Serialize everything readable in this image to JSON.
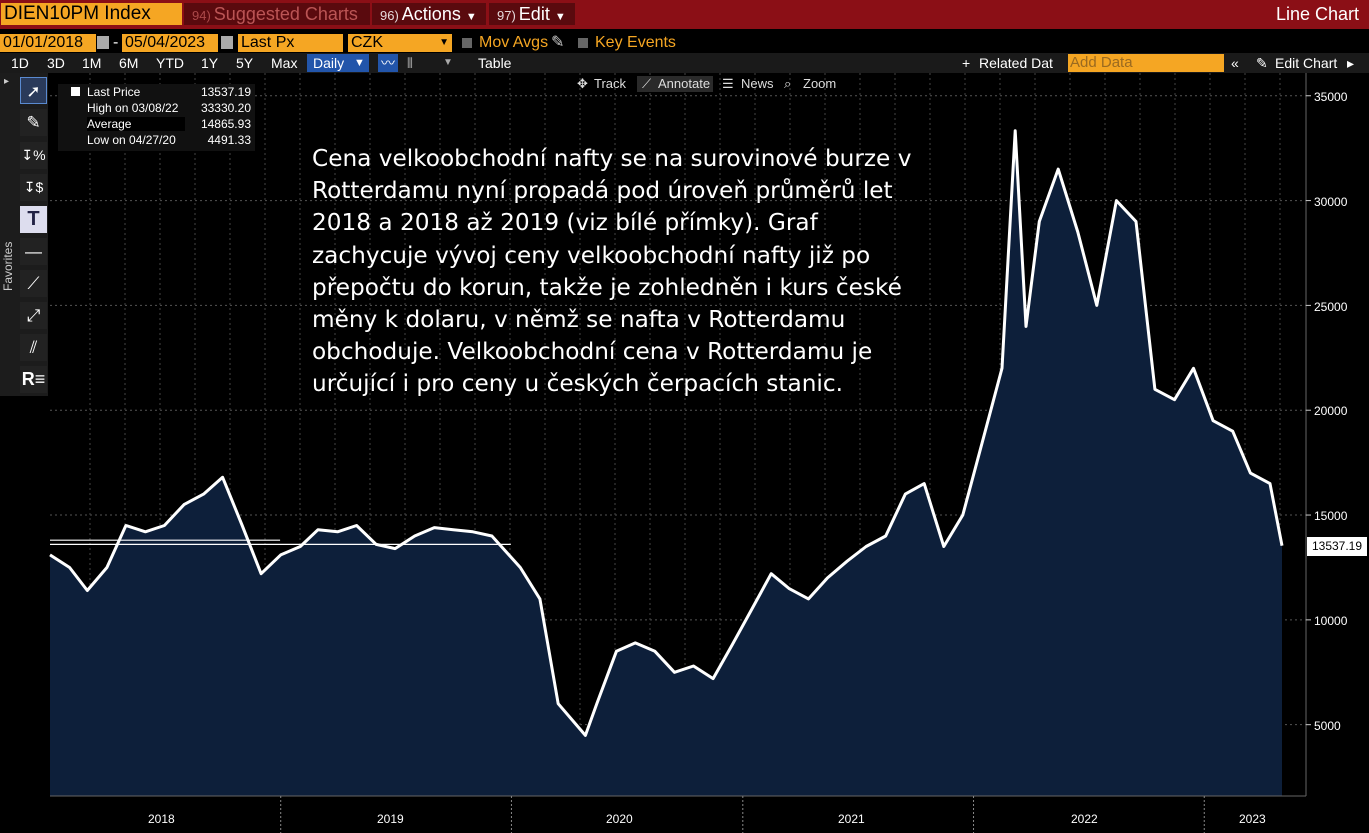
{
  "titlebar": {
    "ticker": "DIEN10PM Index",
    "suggested_num": "94)",
    "suggested": "Suggested Charts",
    "actions_num": "96)",
    "actions": "Actions",
    "edit_num": "97)",
    "edit": "Edit",
    "chart_type": "Line Chart"
  },
  "controls": {
    "start_date": "01/01/2018",
    "dash": "-",
    "end_date": "05/04/2023",
    "field": "Last Px",
    "currency": "CZK",
    "mov_avgs": "Mov Avgs",
    "key_events": "Key Events"
  },
  "range_bar": {
    "ranges": [
      "1D",
      "3D",
      "1M",
      "6M",
      "YTD",
      "1Y",
      "5Y",
      "Max"
    ],
    "period": "Daily",
    "table": "Table",
    "related": "Related Dat",
    "add_data": "Add Data",
    "edit_chart": "Edit Chart"
  },
  "annotate_bar": {
    "track": "Track",
    "annotate": "Annotate",
    "news": "News",
    "zoom": "Zoom"
  },
  "sidebar": {
    "favorites": "Favorites"
  },
  "legend": {
    "rows": [
      {
        "label": "Last Price",
        "value": "13537.19"
      },
      {
        "label": "High on 03/08/22",
        "value": "33330.20"
      },
      {
        "label": "Average",
        "value": "14865.93"
      },
      {
        "label": "Low on 04/27/20",
        "value": "4491.33"
      }
    ]
  },
  "annotation_text": "Cena velkoobchodní nafty se na surovinové burze v Rotterdamu nyní propadá pod úroveň průměrů let 2018 a 2018 až 2019 (viz bílé přímky). Graf zachycuje vývoj ceny velkoobchodní nafty již po přepočtu do korun, takže je zohledněn i kurs české měny k dolaru, v němž se nafta v Rotterdamu obchoduje. Velkoobchodní cena v Rotterdamu je určující i pro ceny u českých čerpacích stanic.",
  "last_value_label": "13537.19",
  "colors": {
    "titlebar": "#8b0f16",
    "accent": "#f5a623",
    "area": "#0d1f3a",
    "line": "#ffffff"
  },
  "chart_data": {
    "type": "area",
    "xlabel": "",
    "ylabel": "",
    "x_tick_labels": [
      "2018",
      "2019",
      "2020",
      "2021",
      "2022",
      "2023"
    ],
    "y_tick_labels": [
      "5000",
      "10000",
      "15000",
      "20000",
      "25000",
      "30000",
      "35000"
    ],
    "ylim": [
      2000,
      36000
    ],
    "xlim": [
      "2018-01-01",
      "2023-05-04"
    ],
    "grid": true,
    "reference_lines": [
      {
        "value": 13800,
        "from": "2018-01-01",
        "to": "2018-12-31"
      },
      {
        "value": 13600,
        "from": "2018-01-01",
        "to": "2019-12-31"
      }
    ],
    "series": [
      {
        "x": [
          "2018-01-01",
          "2018-02-01",
          "2018-03-01",
          "2018-04-01",
          "2018-05-01",
          "2018-06-01",
          "2018-07-01",
          "2018-08-01",
          "2018-09-01",
          "2018-10-01",
          "2018-11-01",
          "2018-12-01",
          "2019-01-01",
          "2019-02-01",
          "2019-03-01",
          "2019-04-01",
          "2019-05-01",
          "2019-06-01",
          "2019-07-01",
          "2019-08-01",
          "2019-09-01",
          "2019-10-01",
          "2019-11-01",
          "2019-12-01",
          "2020-01-15",
          "2020-02-15",
          "2020-03-15",
          "2020-04-27",
          "2020-05-15",
          "2020-06-15",
          "2020-07-15",
          "2020-08-15",
          "2020-09-15",
          "2020-10-15",
          "2020-11-15",
          "2020-12-15",
          "2021-01-15",
          "2021-02-15",
          "2021-03-15",
          "2021-04-15",
          "2021-05-15",
          "2021-06-15",
          "2021-07-15",
          "2021-08-15",
          "2021-09-15",
          "2021-10-15",
          "2021-11-15",
          "2021-12-15",
          "2022-01-15",
          "2022-02-15",
          "2022-03-08",
          "2022-03-25",
          "2022-04-15",
          "2022-05-15",
          "2022-06-15",
          "2022-07-15",
          "2022-08-15",
          "2022-09-15",
          "2022-10-15",
          "2022-11-15",
          "2022-12-15",
          "2023-01-15",
          "2023-02-15",
          "2023-03-15",
          "2023-04-15",
          "2023-05-04"
        ],
        "values": [
          13100,
          12500,
          11400,
          12500,
          14500,
          14200,
          14500,
          15500,
          16000,
          16800,
          14500,
          12200,
          13100,
          13500,
          14300,
          14200,
          14500,
          13600,
          13400,
          14000,
          14400,
          14300,
          14200,
          14000,
          12500,
          11000,
          6000,
          4491,
          6000,
          8500,
          8900,
          8500,
          7500,
          7800,
          7200,
          8800,
          10500,
          12200,
          11500,
          11000,
          12000,
          12800,
          13500,
          14000,
          16000,
          16500,
          13500,
          15000,
          18500,
          22000,
          33330,
          24000,
          29000,
          31500,
          28500,
          25000,
          30000,
          29000,
          21000,
          20500,
          22000,
          19500,
          19000,
          17000,
          16500,
          13537
        ]
      }
    ]
  }
}
